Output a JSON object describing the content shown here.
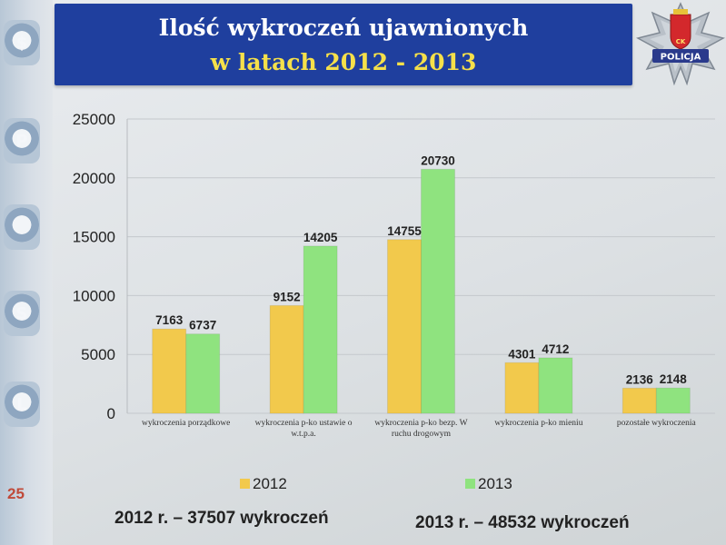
{
  "slide": {
    "title_line1": "Ilość wykroczeń ujawnionych",
    "title_line2": "w latach 2012 - 2013",
    "badge_text": "POLICJA",
    "badge_emblem_letters": "CK",
    "slide_number": "25",
    "strip_icons": [
      "$",
      "P",
      "",
      "S",
      "L"
    ],
    "summary_2012": "2012 r. – 37507 wykroczeń",
    "summary_2013": "2013 r. – 48532 wykroczeń",
    "colors": {
      "title_bg": "#1f3f9e",
      "title_line1": "#ffffff",
      "title_line2": "#f5e04a",
      "series_2012": "#f2c94c",
      "series_2013": "#8fe37f"
    }
  },
  "chart_data": {
    "type": "bar",
    "categories": [
      "wykroczenia porządkowe",
      "wykroczenia p-ko ustawie o w.t.p.a.",
      "wykroczenia p-ko bezp. W ruchu drogowym",
      "wykroczenia p-ko mieniu",
      "pozostałe wykroczenia"
    ],
    "category_label_lines": [
      [
        "wykroczenia porządkowe"
      ],
      [
        "wykroczenia p-ko ustawie o",
        "w.t.p.a."
      ],
      [
        "wykroczenia p-ko bezp. W",
        "ruchu drogowym"
      ],
      [
        "wykroczenia p-ko mieniu"
      ],
      [
        "pozostałe wykroczenia"
      ]
    ],
    "series": [
      {
        "name": "2012",
        "values": [
          7163,
          9152,
          14755,
          4301,
          2136
        ],
        "color": "#f2c94c"
      },
      {
        "name": "2013",
        "values": [
          6737,
          14205,
          20730,
          4712,
          2148
        ],
        "color": "#8fe37f"
      }
    ],
    "ylim": [
      0,
      25000
    ],
    "yticks": [
      0,
      5000,
      10000,
      15000,
      20000,
      25000
    ],
    "grid": true,
    "legend_position": "bottom",
    "data_labels": true
  }
}
